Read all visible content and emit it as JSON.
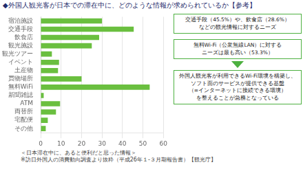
{
  "chart_data": {
    "type": "bar",
    "orientation": "horizontal",
    "title": "◆外国人観光客が日本での滞在中に、どのような情報が求められているか【参考】",
    "subtitle": "＜日本滞在中に、あると便利だと思った情報＞",
    "source": "※訪日外国人の消費動向調査より抜粋（平成26年１-３月期報告書）【観光庁】",
    "categories": [
      "宿泊施設",
      "交通手段",
      "飲食店",
      "観光施設",
      "観光ツアー",
      "イベント",
      "土産物",
      "買物場所",
      "無料WiFi",
      "新聞雑誌",
      "ATM",
      "両替所",
      "宅配便",
      "その他"
    ],
    "values": [
      30.0,
      45.5,
      28.6,
      25.0,
      5.5,
      9.0,
      8.5,
      20.0,
      53.3,
      1.5,
      9.5,
      7.5,
      3.5,
      2.5
    ],
    "color": "#6abf3f",
    "xlim": [
      0,
      60
    ],
    "xticks": [
      0,
      10,
      20,
      30,
      40,
      50,
      60
    ],
    "grid": true,
    "annotations": [
      "交通手段（45.5%）や、飲食店（28.6%）\nなどの観光情報に対するニーズ",
      "無料Wi-Fi（公衆無線LAN）に対する\nニーズは最も高い（53.3%）",
      "外国人観光客が利用できるWi-Fi環境を構築し、\nソフト面のサービスが提供できる基盤\n（=インターネットに接続できる環境）\nを整えることが急務となっている"
    ]
  }
}
